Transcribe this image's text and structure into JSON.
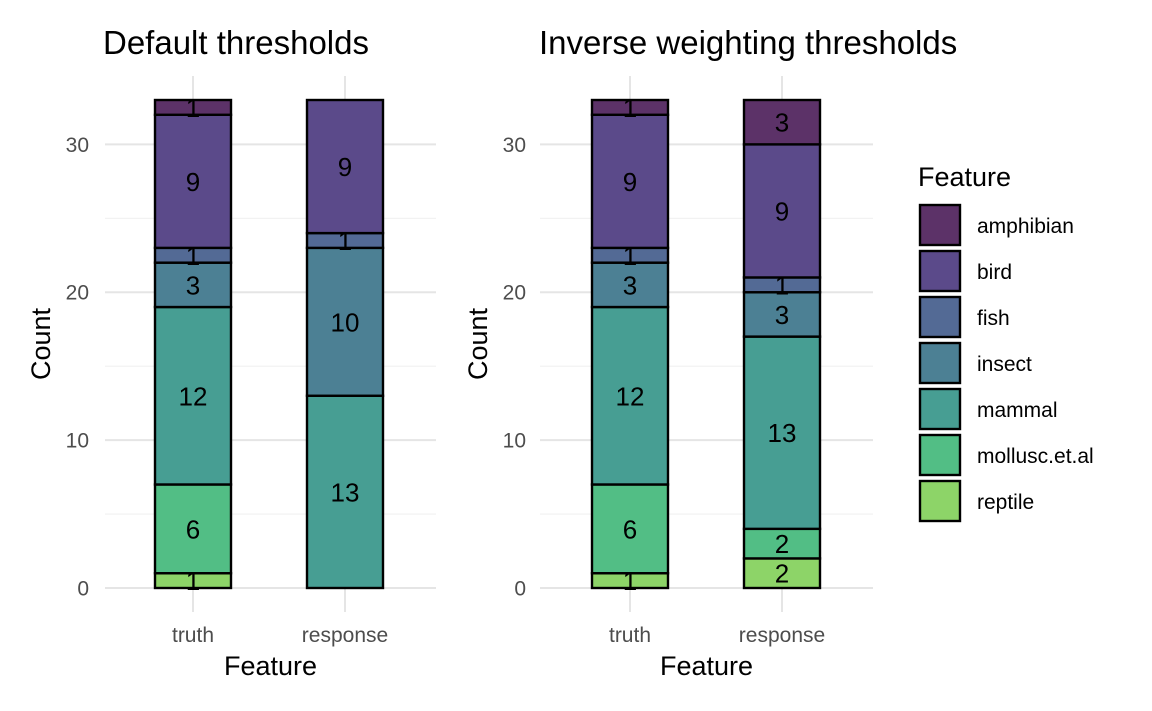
{
  "chart_data": [
    {
      "type": "bar",
      "stacked": true,
      "title": "Default thresholds",
      "xlabel": "Feature",
      "ylabel": "Count",
      "categories": [
        "truth",
        "response"
      ],
      "ylim": [
        0,
        33
      ],
      "yticks": [
        0,
        10,
        20,
        30
      ],
      "grid": true,
      "series": [
        {
          "name": "amphibian",
          "values": [
            1,
            0
          ]
        },
        {
          "name": "bird",
          "values": [
            9,
            9
          ]
        },
        {
          "name": "fish",
          "values": [
            1,
            1
          ]
        },
        {
          "name": "insect",
          "values": [
            3,
            10
          ]
        },
        {
          "name": "mammal",
          "values": [
            12,
            13
          ]
        },
        {
          "name": "mollusc.et.al",
          "values": [
            6,
            0
          ]
        },
        {
          "name": "reptile",
          "values": [
            1,
            0
          ]
        }
      ]
    },
    {
      "type": "bar",
      "stacked": true,
      "title": "Inverse weighting thresholds",
      "xlabel": "Feature",
      "ylabel": "Count",
      "categories": [
        "truth",
        "response"
      ],
      "ylim": [
        0,
        33
      ],
      "yticks": [
        0,
        10,
        20,
        30
      ],
      "grid": true,
      "series": [
        {
          "name": "amphibian",
          "values": [
            1,
            3
          ]
        },
        {
          "name": "bird",
          "values": [
            9,
            9
          ]
        },
        {
          "name": "fish",
          "values": [
            1,
            1
          ]
        },
        {
          "name": "insect",
          "values": [
            3,
            3
          ]
        },
        {
          "name": "mammal",
          "values": [
            12,
            13
          ]
        },
        {
          "name": "mollusc.et.al",
          "values": [
            6,
            2
          ]
        },
        {
          "name": "reptile",
          "values": [
            1,
            2
          ]
        }
      ]
    }
  ],
  "legend": {
    "title": "Feature",
    "position": "right",
    "items": [
      {
        "label": "amphibian",
        "color": "#440154"
      },
      {
        "label": "bird",
        "color": "#443a83"
      },
      {
        "label": "fish",
        "color": "#31688e"
      },
      {
        "label": "insect",
        "color": "#21908d"
      },
      {
        "label": "mammal",
        "color": "#35b779"
      },
      {
        "label": "mollusc.et.al",
        "color": "#8fd744"
      },
      {
        "label": "reptile",
        "color": "#fde725"
      }
    ]
  },
  "colors": {
    "amphibian": "#5c3268",
    "bird": "#5b4a8a",
    "fish": "#536a95",
    "insect": "#4c8094",
    "mammal": "#479e93",
    "mollusc.et.al": "#52be85",
    "reptile": "#8dd468"
  }
}
